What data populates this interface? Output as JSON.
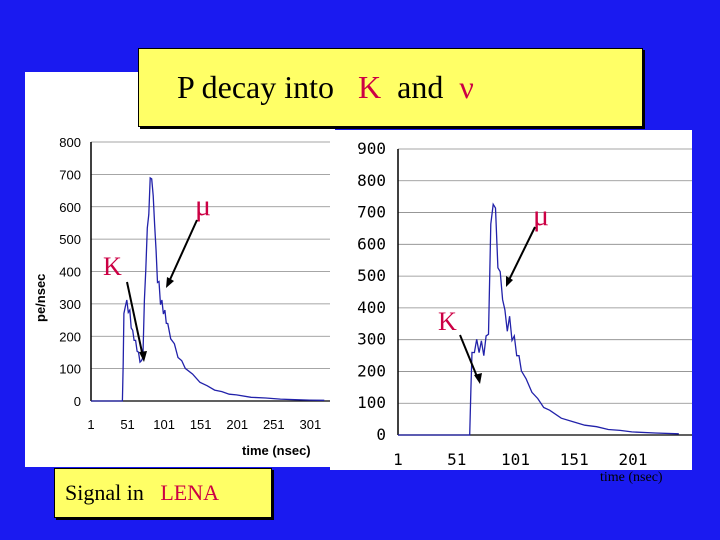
{
  "title": {
    "prefix": "P  decay into",
    "k": "K",
    "and": "and",
    "nu": "ν"
  },
  "caption": {
    "prefix": "Signal in",
    "lena": "LENA"
  },
  "colors": {
    "background": "#1a1af0",
    "label_red": "#cc0044",
    "box_yellow": "#ffff66",
    "trace": "#2222aa"
  },
  "chart_data": [
    {
      "type": "line",
      "ylabel": "pe/nsec",
      "xlabel": "time (nsec)",
      "ylim": [
        0,
        800
      ],
      "xlim": [
        1,
        321
      ],
      "yticks": [
        "0",
        "100",
        "200",
        "300",
        "400",
        "500",
        "600",
        "700",
        "800"
      ],
      "xticks": [
        "1",
        "51",
        "101",
        "151",
        "201",
        "251",
        "301"
      ],
      "annotations": [
        {
          "text": "μ",
          "x": 96,
          "y": 410
        },
        {
          "text": "K",
          "x": 70,
          "y": 120
        }
      ],
      "series": [
        {
          "x": [
            1,
            44,
            45,
            46,
            48,
            50,
            52,
            54,
            56,
            58,
            60,
            62,
            64,
            66,
            68,
            70,
            72,
            74,
            76,
            78,
            80,
            82,
            84,
            86,
            88,
            90,
            92,
            94,
            96,
            98,
            100,
            102,
            104,
            106,
            110,
            115,
            120,
            125,
            130,
            140,
            150,
            160,
            170,
            180,
            190,
            200,
            220,
            240,
            260,
            280,
            300,
            320
          ],
          "y": [
            0,
            0,
            120,
            260,
            305,
            300,
            285,
            270,
            235,
            210,
            195,
            180,
            160,
            145,
            125,
            120,
            140,
            300,
            420,
            520,
            590,
            675,
            700,
            620,
            560,
            450,
            380,
            355,
            310,
            300,
            280,
            270,
            250,
            230,
            200,
            170,
            140,
            120,
            105,
            80,
            60,
            45,
            35,
            28,
            22,
            18,
            12,
            9,
            6,
            4,
            3,
            2
          ]
        }
      ]
    },
    {
      "type": "line",
      "xlabel": "time (nsec)",
      "ylim": [
        0,
        900
      ],
      "xlim": [
        1,
        241
      ],
      "yticks": [
        "0",
        "100",
        "200",
        "300",
        "400",
        "500",
        "600",
        "700",
        "800",
        "900"
      ],
      "xticks": [
        "1",
        "51",
        "101",
        "151",
        "201"
      ],
      "annotations": [
        {
          "text": "μ",
          "x": 110,
          "y": 650
        },
        {
          "text": "K",
          "x": 42,
          "y": 320
        }
      ],
      "series": [
        {
          "x": [
            1,
            62,
            63,
            64,
            66,
            68,
            70,
            72,
            74,
            76,
            78,
            80,
            82,
            84,
            86,
            88,
            90,
            92,
            94,
            96,
            98,
            100,
            102,
            104,
            106,
            110,
            115,
            120,
            125,
            130,
            140,
            150,
            160,
            170,
            180,
            190,
            200,
            220,
            240
          ],
          "y": [
            0,
            0,
            150,
            250,
            270,
            290,
            270,
            285,
            260,
            300,
            330,
            650,
            740,
            700,
            540,
            500,
            440,
            380,
            340,
            360,
            310,
            300,
            260,
            240,
            210,
            170,
            140,
            110,
            90,
            75,
            55,
            40,
            32,
            25,
            18,
            14,
            10,
            6,
            4
          ]
        }
      ]
    }
  ]
}
